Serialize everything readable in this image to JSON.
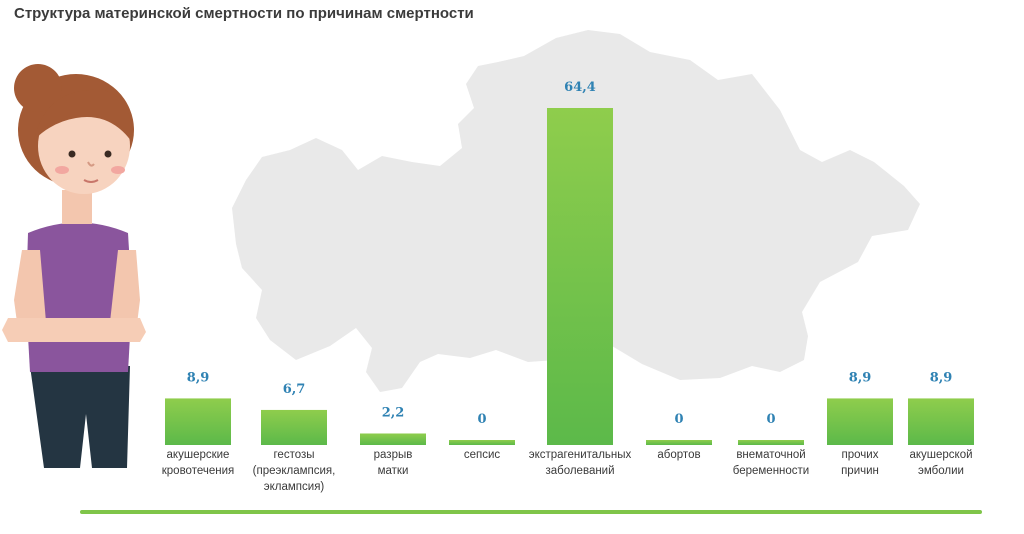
{
  "page": {
    "title": "Структура материнской смертности по причинам смертности"
  },
  "chart_data": {
    "type": "bar",
    "title": "Структура материнской смертности по причинам смертности",
    "xlabel": "",
    "ylabel": "",
    "ylim": [
      0,
      70
    ],
    "grid": false,
    "legend": "none",
    "categories": [
      [
        "акушерские",
        "кровотечения"
      ],
      [
        "гестозы",
        "(преэклампсия,",
        "эклампсия)"
      ],
      [
        "разрыв",
        "матки"
      ],
      [
        "сепсис"
      ],
      [
        "экстрагенитальных",
        "заболеваний"
      ],
      [
        "абортов"
      ],
      [
        "внематочной",
        "беременности"
      ],
      [
        "прочих",
        "причин"
      ],
      [
        "акушерской",
        "эмболии"
      ]
    ],
    "values": [
      8.9,
      6.7,
      2.2,
      0,
      64.4,
      0,
      0,
      8.9,
      8.9
    ],
    "value_labels": [
      "8,9",
      "6,7",
      "2,2",
      "0",
      "64,4",
      "0",
      "0",
      "8,9",
      "8,9"
    ],
    "colors": {
      "bar_top": "#8fcd4c",
      "bar_bottom": "#5cb94a",
      "value_label": "#2f82b3",
      "category_label": "#3a3a3a",
      "baseline": "#7fc549"
    }
  },
  "illustration": {
    "background": "map-of-kazakhstan",
    "figure": "woman-with-crossed-arms"
  }
}
